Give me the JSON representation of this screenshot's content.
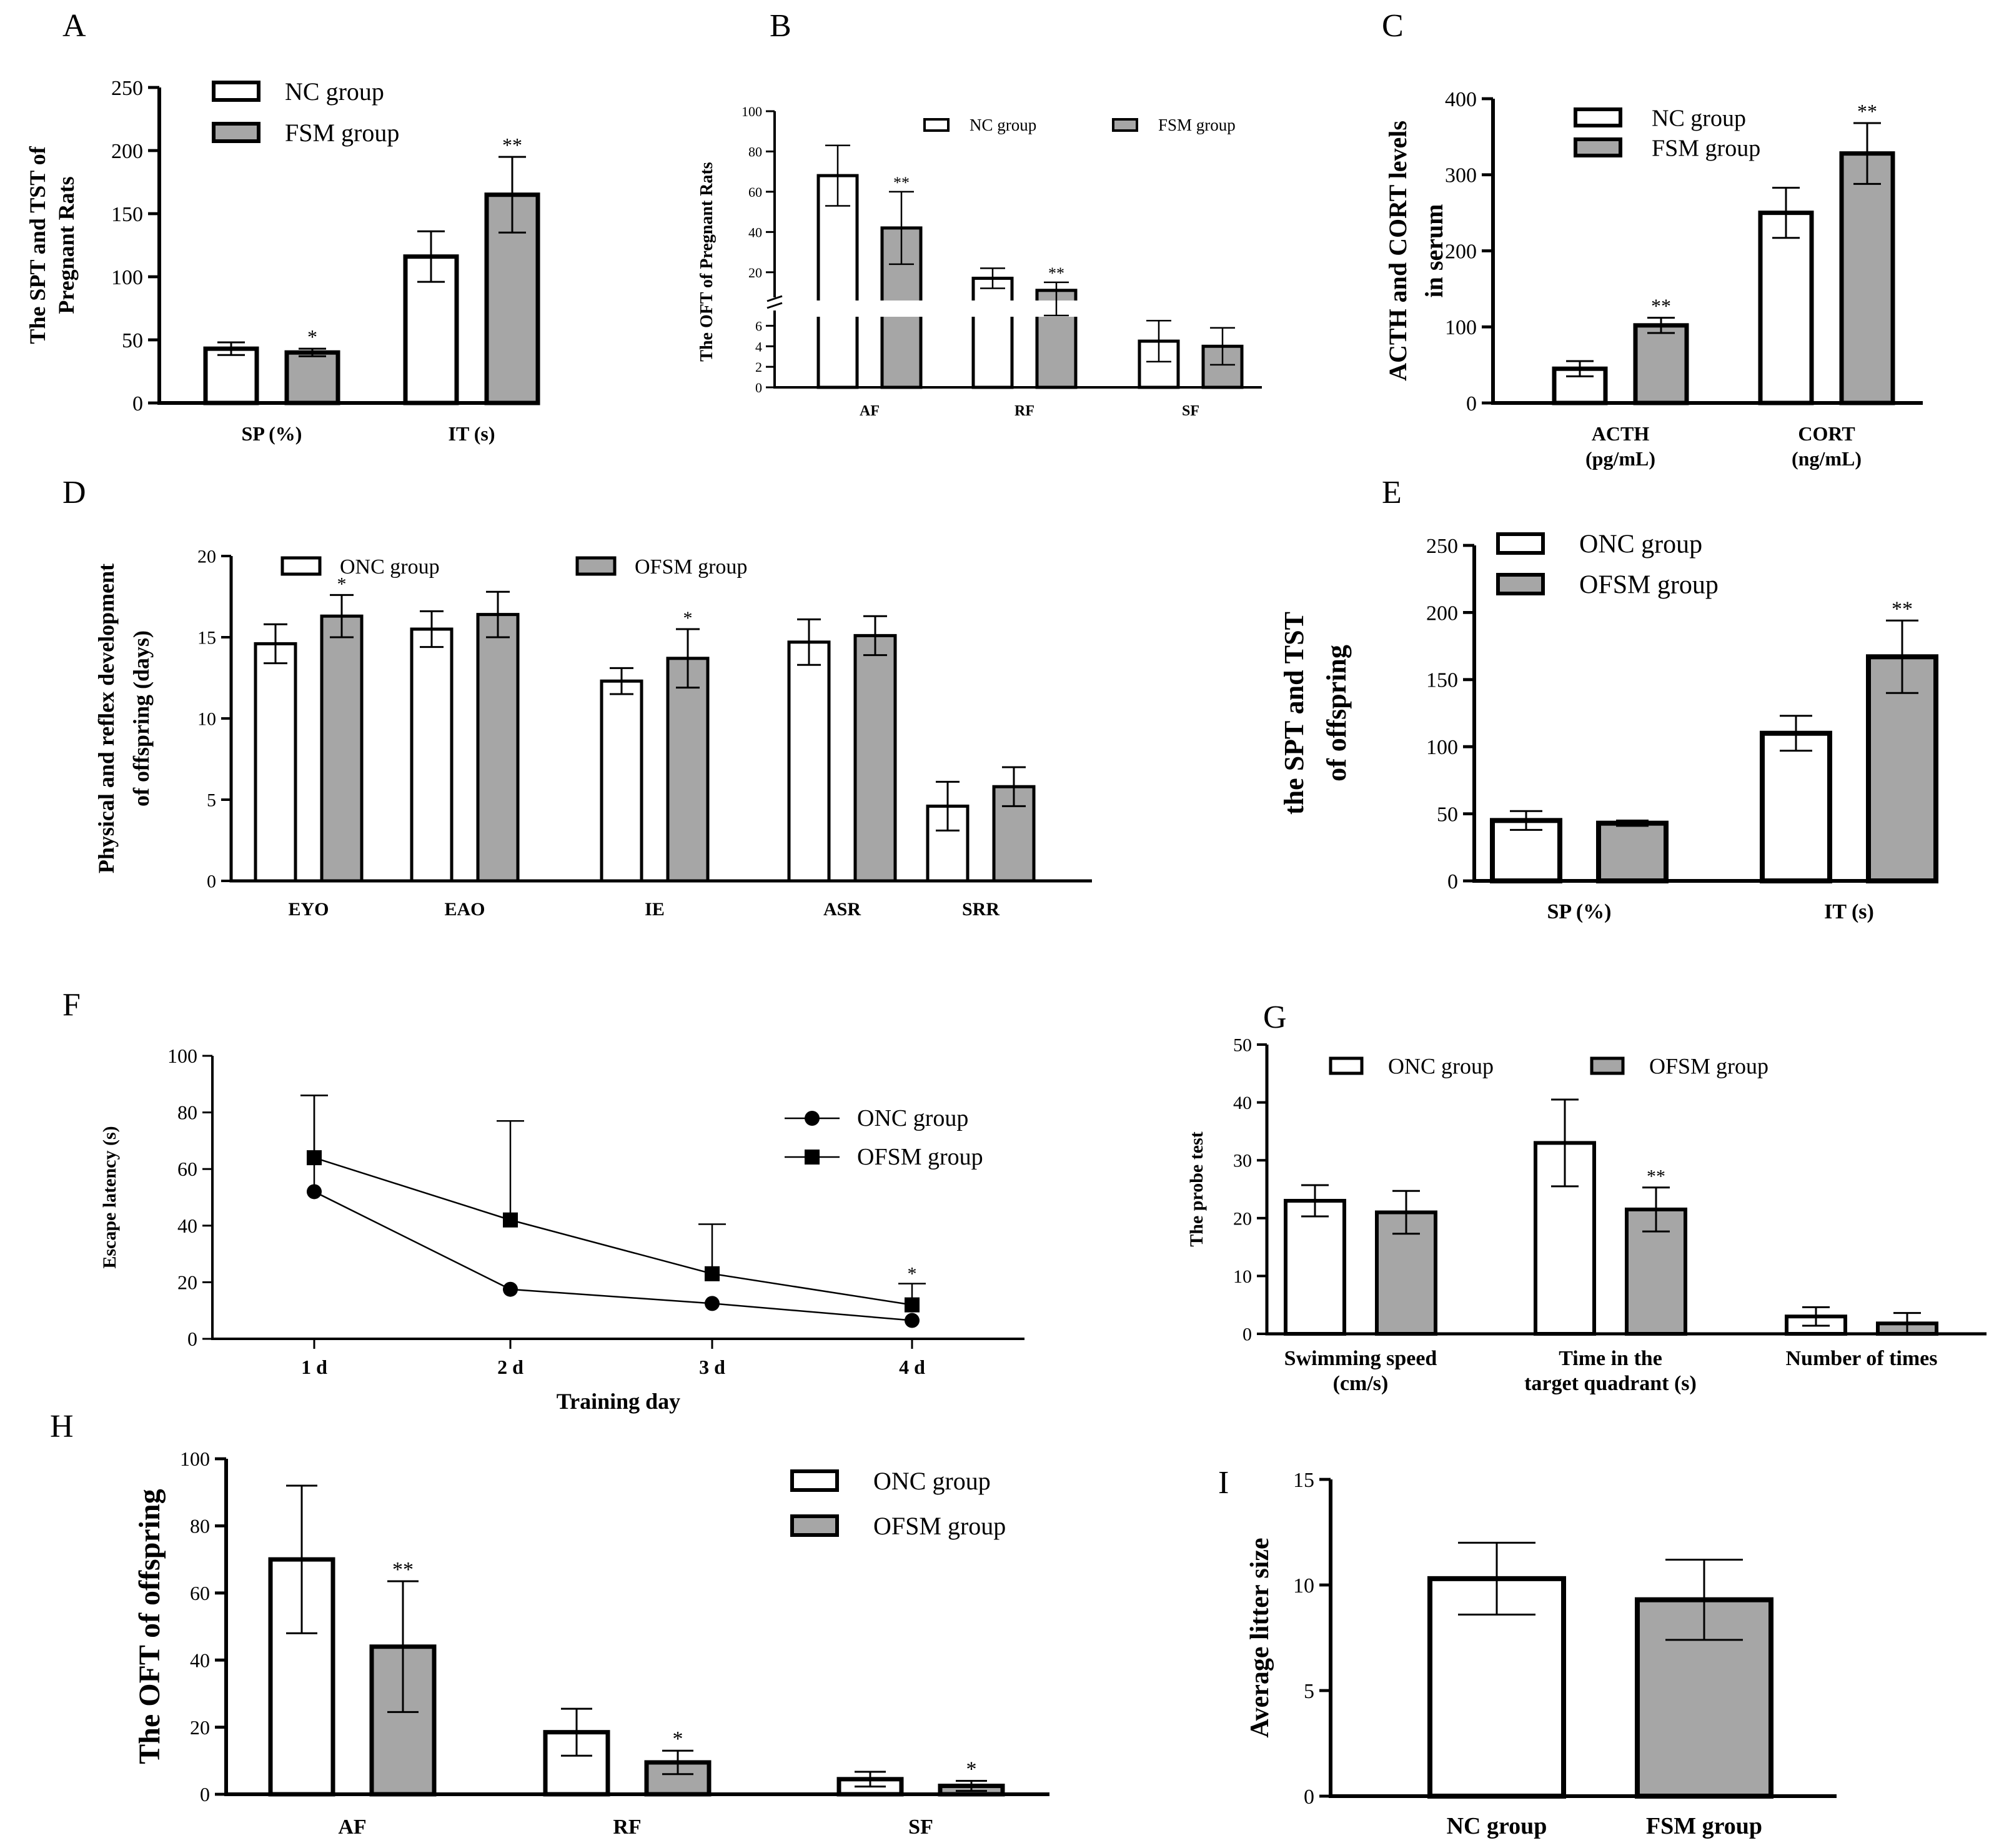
{
  "chart_data": [
    {
      "panel_label": "A",
      "type": "bar",
      "ylabel": [
        "The SPT and TST of",
        "Pregnant Rats"
      ],
      "ylim": [
        0,
        250
      ],
      "yticks": [
        0,
        50,
        100,
        150,
        200,
        250
      ],
      "categories": [
        "SP (%)",
        "IT (s)"
      ],
      "series": [
        {
          "name": "NC group",
          "values": [
            43,
            116
          ],
          "errors": [
            5,
            20
          ],
          "marks": [
            "",
            ""
          ]
        },
        {
          "name": "FSM group",
          "values": [
            40,
            165
          ],
          "errors": [
            3,
            30
          ],
          "marks": [
            "*",
            "**"
          ]
        }
      ],
      "legend": [
        "NC group",
        "FSM group"
      ]
    },
    {
      "panel_label": "B",
      "type": "bar",
      "ylabel": [
        "The OFT of Pregnant Rats"
      ],
      "broken_axis": true,
      "ylim_lower": [
        0,
        7
      ],
      "ylim_upper": [
        10,
        100
      ],
      "yticks_lower": [
        0,
        2,
        4,
        6
      ],
      "yticks_upper": [
        20,
        40,
        60,
        80,
        100
      ],
      "categories": [
        "AF",
        "RF",
        "SF"
      ],
      "series": [
        {
          "name": "NC group",
          "values": [
            68,
            17,
            4.5
          ],
          "errors": [
            15,
            5,
            2
          ],
          "marks": [
            "",
            "",
            ""
          ]
        },
        {
          "name": "FSM group",
          "values": [
            42,
            11,
            4
          ],
          "errors": [
            18,
            4,
            1.8
          ],
          "marks": [
            "**",
            "**",
            ""
          ]
        }
      ],
      "legend": [
        "NC group",
        "FSM group"
      ]
    },
    {
      "panel_label": "C",
      "type": "bar",
      "ylabel": [
        "ACTH and CORT levels",
        "in serum"
      ],
      "ylim": [
        0,
        400
      ],
      "yticks": [
        0,
        100,
        200,
        300,
        400
      ],
      "categories": [
        "ACTH (pg/mL)",
        "CORT (ng/mL)"
      ],
      "category_lines": [
        [
          "ACTH",
          "(pg/mL)"
        ],
        [
          "CORT",
          "(ng/mL)"
        ]
      ],
      "series": [
        {
          "name": "NC group",
          "values": [
            45,
            250
          ],
          "errors": [
            10,
            33
          ],
          "marks": [
            "",
            ""
          ]
        },
        {
          "name": "FSM group",
          "values": [
            102,
            328
          ],
          "errors": [
            10,
            40
          ],
          "marks": [
            "**",
            "**"
          ]
        }
      ],
      "legend": [
        "NC group",
        "FSM group"
      ]
    },
    {
      "panel_label": "D",
      "type": "bar",
      "ylabel": [
        "Physical and reflex development",
        "of offspring (days)"
      ],
      "ylim": [
        0,
        20
      ],
      "yticks": [
        0,
        5,
        10,
        15,
        20
      ],
      "categories": [
        "EYO",
        "EAO",
        "IE",
        "ASR",
        "SRR"
      ],
      "series": [
        {
          "name": "ONC group",
          "values": [
            14.6,
            15.5,
            12.3,
            14.7,
            4.6
          ],
          "errors": [
            1.2,
            1.1,
            0.8,
            1.4,
            1.5
          ],
          "marks": [
            "",
            "",
            "",
            "",
            ""
          ]
        },
        {
          "name": "OFSM group",
          "values": [
            16.3,
            16.4,
            13.7,
            15.1,
            5.8
          ],
          "errors": [
            1.3,
            1.4,
            1.8,
            1.2,
            1.2
          ],
          "marks": [
            "*",
            "",
            "*",
            "",
            ""
          ]
        }
      ],
      "legend": [
        "ONC group",
        "OFSM group"
      ]
    },
    {
      "panel_label": "E",
      "type": "bar",
      "ylabel": [
        "the SPT and TST",
        "of offspring"
      ],
      "ylim": [
        0,
        250
      ],
      "yticks": [
        0,
        50,
        100,
        150,
        200,
        250
      ],
      "categories": [
        "SP (%)",
        "IT (s)"
      ],
      "series": [
        {
          "name": "ONC group",
          "values": [
            45,
            110
          ],
          "errors": [
            7,
            13
          ],
          "marks": [
            "",
            ""
          ]
        },
        {
          "name": "OFSM group",
          "values": [
            43,
            167
          ],
          "errors": [
            2,
            27
          ],
          "marks": [
            "",
            "**"
          ]
        }
      ],
      "legend": [
        "ONC group",
        "OFSM group"
      ]
    },
    {
      "panel_label": "F",
      "type": "line",
      "xlabel": "Training day",
      "ylabel": [
        "Escape latency (s)"
      ],
      "ylim": [
        0,
        100
      ],
      "yticks": [
        0,
        20,
        40,
        60,
        80,
        100
      ],
      "categories": [
        "1 d",
        "2 d",
        "3 d",
        "4 d"
      ],
      "series": [
        {
          "name": "ONC group",
          "marker": "circle",
          "values": [
            52,
            17.5,
            12.5,
            6.5
          ],
          "errors": [
            34,
            0,
            0,
            0
          ]
        },
        {
          "name": "OFSM group",
          "marker": "square",
          "values": [
            64,
            42,
            23,
            12
          ],
          "errors": [
            22,
            35,
            17.5,
            7.5
          ]
        }
      ],
      "marks": [
        "",
        "",
        "",
        "*"
      ],
      "legend": [
        "ONC group",
        "OFSM group"
      ]
    },
    {
      "panel_label": "G",
      "type": "bar",
      "ylabel": [
        "The probe test"
      ],
      "ylim": [
        0,
        50
      ],
      "yticks": [
        0,
        10,
        20,
        30,
        40,
        50
      ],
      "categories": [
        "Swimming speed (cm/s)",
        "Time in the target quadrant (s)",
        "Number of times"
      ],
      "category_lines": [
        [
          "Swimming speed",
          "(cm/s)"
        ],
        [
          "Time in the",
          "target quadrant (s)"
        ],
        [
          "Number of times"
        ]
      ],
      "series": [
        {
          "name": "ONC group",
          "values": [
            23,
            33,
            3
          ],
          "errors": [
            2.7,
            7.5,
            1.6
          ],
          "marks": [
            "",
            "",
            ""
          ]
        },
        {
          "name": "OFSM group",
          "values": [
            21,
            21.5,
            1.8
          ],
          "errors": [
            3.7,
            3.8,
            1.8
          ],
          "marks": [
            "",
            "**",
            ""
          ]
        }
      ],
      "legend": [
        "ONC group",
        "OFSM group"
      ]
    },
    {
      "panel_label": "H",
      "type": "bar",
      "ylabel": [
        "The OFT of offspring"
      ],
      "ylim": [
        0,
        100
      ],
      "yticks": [
        0,
        20,
        40,
        60,
        80,
        100
      ],
      "categories": [
        "AF",
        "RF",
        "SF"
      ],
      "series": [
        {
          "name": "ONC group",
          "values": [
            70,
            18.5,
            4.5
          ],
          "errors": [
            22,
            7,
            2.2
          ],
          "marks": [
            "",
            "",
            ""
          ]
        },
        {
          "name": "OFSM group",
          "values": [
            44,
            9.5,
            2.5
          ],
          "errors": [
            19.5,
            3.5,
            1.5
          ],
          "marks": [
            "**",
            "*",
            "*"
          ]
        }
      ],
      "legend": [
        "ONC group",
        "OFSM group"
      ]
    },
    {
      "panel_label": "I",
      "type": "bar",
      "ylabel": [
        "Average litter size"
      ],
      "ylim": [
        0,
        15
      ],
      "yticks": [
        0,
        5,
        10,
        15
      ],
      "categories": [
        "NC group",
        "FSM group"
      ],
      "series": [
        {
          "name": "litter size",
          "values": [
            10.3,
            9.3
          ],
          "errors": [
            1.7,
            1.9
          ],
          "fills": [
            "#ffffff",
            "#a6a6a6"
          ],
          "marks": [
            "",
            ""
          ]
        }
      ],
      "legend": []
    }
  ],
  "colors": {
    "nc_fill": "#ffffff",
    "fsm_fill": "#a6a6a6",
    "line": "#000000"
  }
}
